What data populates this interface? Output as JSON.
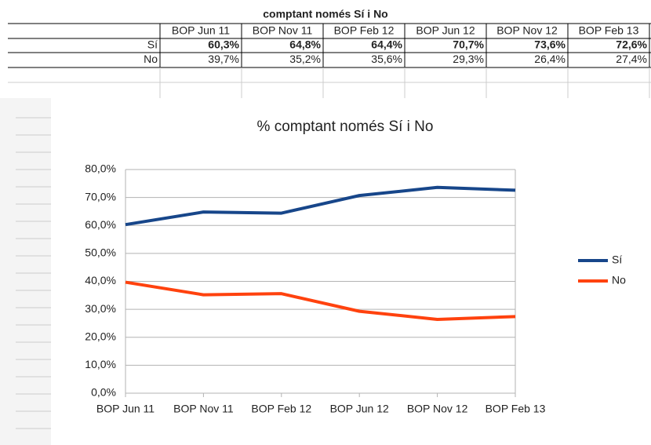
{
  "table": {
    "title": "comptant només Sí i No",
    "header": [
      "BOP Jun 11",
      "BOP Nov 11",
      "BOP Feb 12",
      "BOP Jun 12",
      "BOP Nov 12",
      "BOP Feb 13"
    ],
    "rows": [
      {
        "label": "Sí",
        "cells": [
          "60,3%",
          "64,8%",
          "64,4%",
          "70,7%",
          "73,6%",
          "72,6%"
        ]
      },
      {
        "label": "No",
        "cells": [
          "39,7%",
          "35,2%",
          "35,6%",
          "29,3%",
          "26,4%",
          "27,4%"
        ]
      }
    ]
  },
  "chart_data": {
    "type": "line",
    "title": "% comptant només Sí i No",
    "categories": [
      "BOP Jun 11",
      "BOP Nov 11",
      "BOP Feb 12",
      "BOP Jun 12",
      "BOP Nov 12",
      "BOP Feb 13"
    ],
    "series": [
      {
        "name": "Sí",
        "color": "#17468a",
        "values": [
          60.3,
          64.8,
          64.4,
          70.7,
          73.6,
          72.6
        ]
      },
      {
        "name": "No",
        "color": "#ff420e",
        "values": [
          39.7,
          35.2,
          35.6,
          29.3,
          26.4,
          27.4
        ]
      }
    ],
    "ylim": [
      0,
      80
    ],
    "yticks": [
      {
        "value": 0,
        "label": "0,0%"
      },
      {
        "value": 10,
        "label": "10,0%"
      },
      {
        "value": 20,
        "label": "20,0%"
      },
      {
        "value": 30,
        "label": "30,0%"
      },
      {
        "value": 40,
        "label": "40,0%"
      },
      {
        "value": 50,
        "label": "50,0%"
      },
      {
        "value": 60,
        "label": "60,0%"
      },
      {
        "value": 70,
        "label": "70,0%"
      },
      {
        "value": 80,
        "label": "80,0%"
      }
    ],
    "grid": true,
    "legend": "right"
  }
}
